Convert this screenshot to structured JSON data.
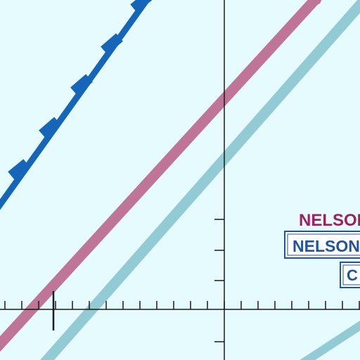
{
  "map": {
    "background_color": "#e6fbfd",
    "graticule_color": "#1a1a1a",
    "roads": [
      {
        "name": "dashed-boundary",
        "style": "dashed",
        "color": "#1565b8"
      },
      {
        "name": "major-highway",
        "style": "solid",
        "color": "#bf7595"
      },
      {
        "name": "secondary-highway-north",
        "style": "solid",
        "color": "#93cbd5"
      },
      {
        "name": "secondary-highway-south",
        "style": "solid",
        "color": "#93cbd5"
      }
    ],
    "labels": {
      "place_name": "NELSON",
      "place_color": "#a11f5c",
      "boxed_name": "NELSON",
      "boxed_color": "#1d55a4",
      "boxed_code": "C",
      "cut_road_text": "C"
    }
  }
}
